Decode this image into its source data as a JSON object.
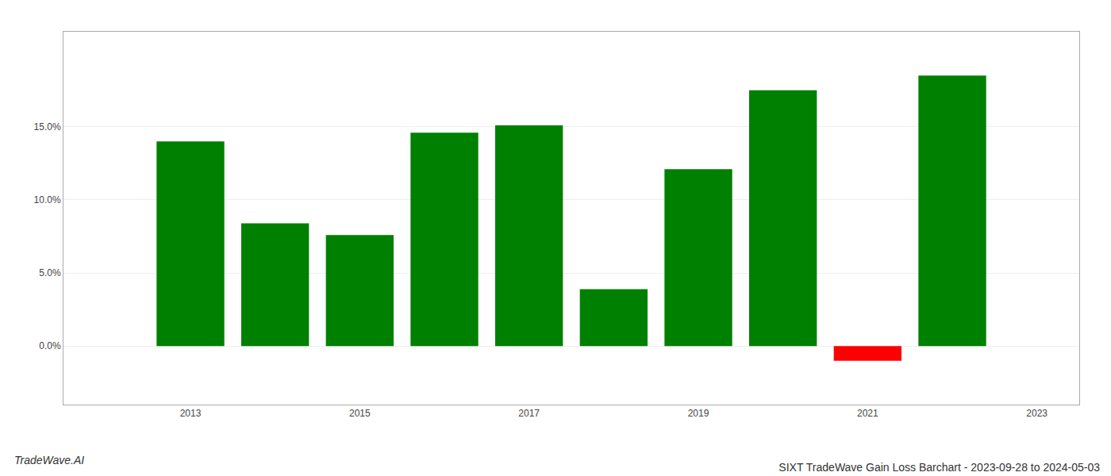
{
  "chart_data": {
    "type": "bar",
    "title": "SIXT TradeWave Gain Loss Barchart - 2023-09-28 to 2024-05-03",
    "annotations": [
      {
        "text": "TradeWave.AI"
      }
    ],
    "x": [
      2013,
      2014,
      2015,
      2016,
      2017,
      2018,
      2019,
      2020,
      2021,
      2022
    ],
    "values": [
      0.14,
      0.084,
      0.076,
      0.146,
      0.151,
      0.039,
      0.121,
      0.175,
      -0.01,
      0.185
    ],
    "colors": [
      "#008000",
      "#008000",
      "#008000",
      "#008000",
      "#008000",
      "#008000",
      "#008000",
      "#008000",
      "#ff0000",
      "#008000"
    ],
    "xlim": [
      2011.5,
      2023.5
    ],
    "xticks": [
      2013,
      2015,
      2017,
      2019,
      2021,
      2023
    ],
    "ylim": [
      -0.04,
      0.215
    ],
    "yticks": [
      {
        "value": 0.0,
        "label": "0.0%"
      },
      {
        "value": 0.05,
        "label": "5.0%"
      },
      {
        "value": 0.1,
        "label": "10.0%"
      },
      {
        "value": 0.15,
        "label": "15.0%"
      }
    ],
    "grid": true
  }
}
